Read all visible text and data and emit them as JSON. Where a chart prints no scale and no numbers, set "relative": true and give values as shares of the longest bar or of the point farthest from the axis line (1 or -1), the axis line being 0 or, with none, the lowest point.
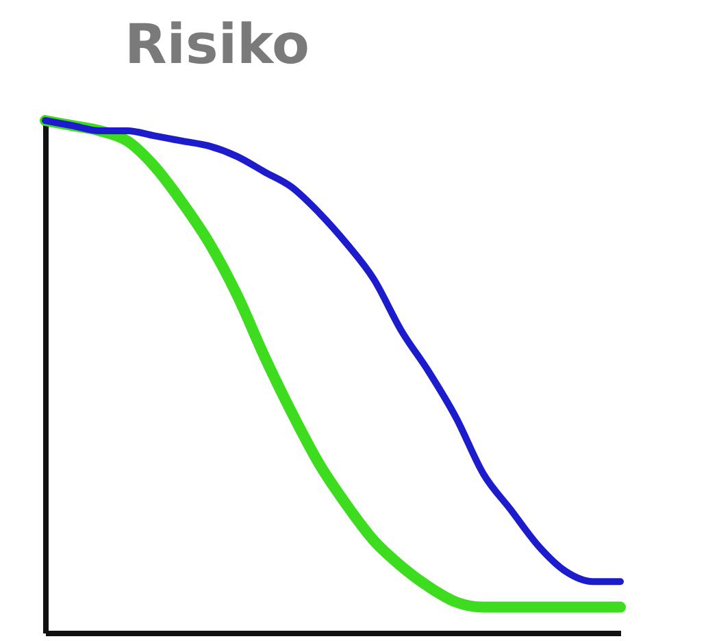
{
  "chart_data": {
    "type": "line",
    "title": "Risiko",
    "relative": true,
    "tick_labels": false,
    "categories": [
      null,
      null,
      null,
      null,
      null,
      null,
      null,
      null,
      null,
      null,
      null,
      null,
      null,
      null,
      null,
      null,
      null,
      null,
      null,
      null,
      null,
      null
    ],
    "series": [
      {
        "color": "#1c1ccc",
        "values": [
          1,
          0.99,
          0.98,
          0.98,
          0.97,
          0.96,
          0.95,
          0.93,
          0.9,
          0.87,
          0.82,
          0.76,
          0.69,
          0.59,
          0.51,
          0.42,
          0.31,
          0.24,
          0.17,
          0.12,
          0.1,
          0.1
        ]
      },
      {
        "color": "#3ddc1e",
        "values": [
          1,
          0.99,
          0.98,
          0.96,
          0.91,
          0.84,
          0.76,
          0.66,
          0.54,
          0.43,
          0.33,
          0.25,
          0.18,
          0.13,
          0.09,
          0.06,
          0.05,
          0.05,
          0.05,
          0.05,
          0.05,
          0.05
        ]
      }
    ]
  }
}
